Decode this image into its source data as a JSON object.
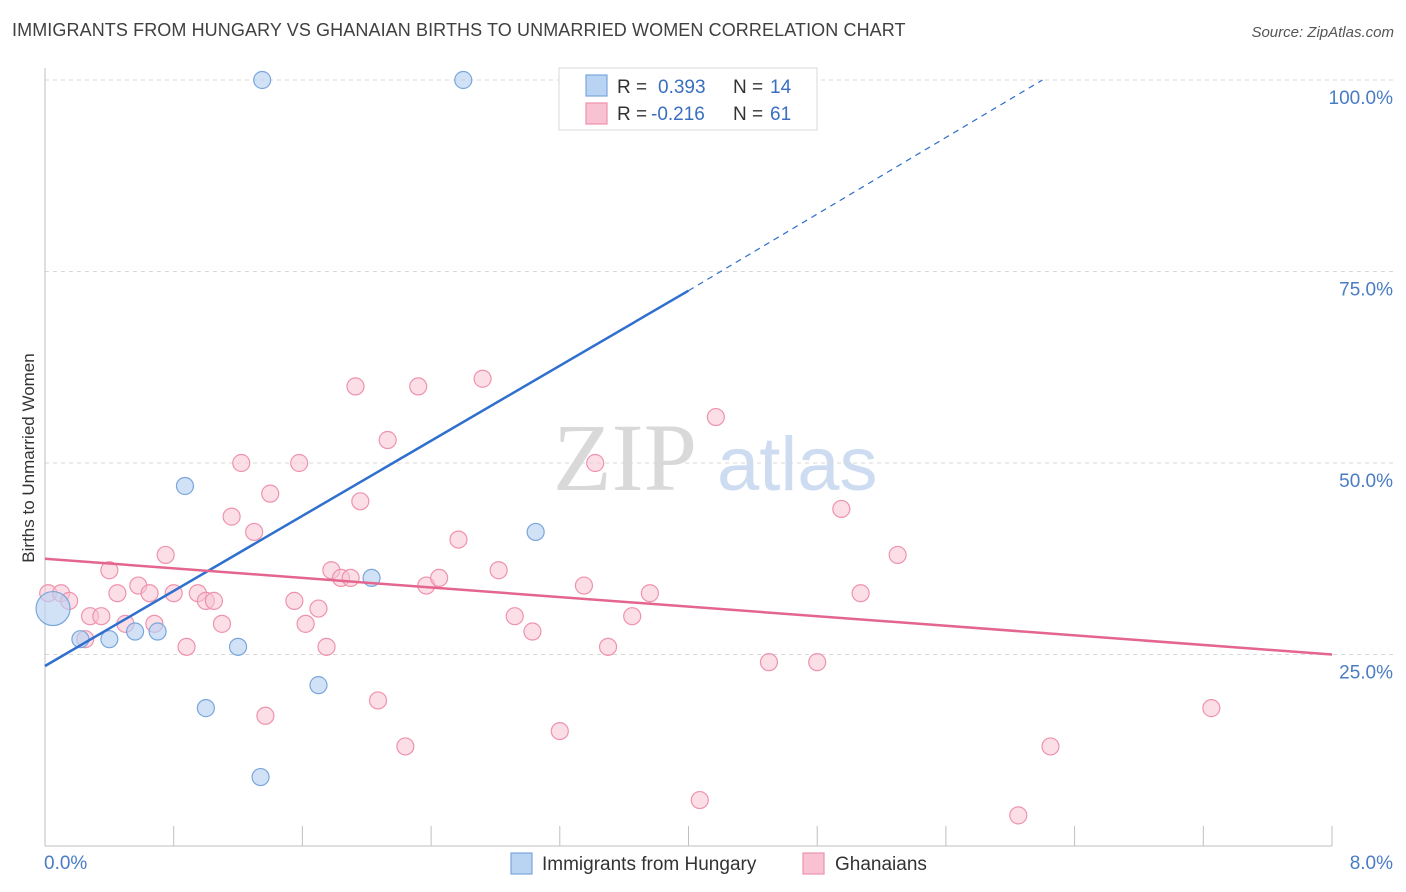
{
  "title": "IMMIGRANTS FROM HUNGARY VS GHANAIAN BIRTHS TO UNMARRIED WOMEN CORRELATION CHART",
  "source": "Source: ZipAtlas.com",
  "watermark": {
    "zip": "ZIP",
    "atlas": "atlas"
  },
  "colors": {
    "blue_fill": "#b9d3f3",
    "blue_stroke": "#7aa6dc",
    "blue_line": "#2f6fce",
    "pink_fill": "#f8c2d2",
    "pink_stroke": "#ee93ae",
    "pink_line": "#e4658e",
    "grid": "#d8d8d8",
    "tick_text": "#4a7cc4"
  },
  "legend_top": {
    "rows": [
      {
        "r_label": "R =",
        "r_value": "0.393",
        "n_label": "N =",
        "n_value": "14"
      },
      {
        "r_label": "R =",
        "r_value": "-0.216",
        "n_label": "N =",
        "n_value": "61"
      }
    ]
  },
  "legend_bottom": [
    "Immigrants from Hungary",
    "Ghanaians"
  ],
  "chart_data": {
    "type": "scatter",
    "title": "IMMIGRANTS FROM HUNGARY VS GHANAIAN BIRTHS TO UNMARRIED WOMEN CORRELATION CHART",
    "xlabel": "",
    "ylabel": "Births to Unmarried Women",
    "xlim": [
      0,
      8
    ],
    "ylim": [
      0,
      100
    ],
    "x_tick_labels": [
      "0.0%",
      "8.0%"
    ],
    "y_tick_labels": [
      "25.0%",
      "50.0%",
      "75.0%",
      "100.0%"
    ],
    "y_ticks": [
      25,
      50,
      75,
      100
    ],
    "series": [
      {
        "name": "Immigrants from Hungary",
        "R": 0.393,
        "N": 14,
        "points": [
          {
            "x": 0.05,
            "y": 31,
            "big": true
          },
          {
            "x": 0.22,
            "y": 27
          },
          {
            "x": 0.4,
            "y": 27
          },
          {
            "x": 0.56,
            "y": 28
          },
          {
            "x": 0.7,
            "y": 28
          },
          {
            "x": 0.87,
            "y": 47
          },
          {
            "x": 1.0,
            "y": 18
          },
          {
            "x": 1.2,
            "y": 26
          },
          {
            "x": 1.34,
            "y": 9
          },
          {
            "x": 1.7,
            "y": 21
          },
          {
            "x": 2.03,
            "y": 35
          },
          {
            "x": 3.05,
            "y": 41
          },
          {
            "x": 1.35,
            "y": 100
          },
          {
            "x": 2.6,
            "y": 100
          }
        ],
        "trend": {
          "x0": 0.0,
          "y0": 23.5,
          "x1": 4.0,
          "y1": 72.5,
          "dash_x1": 6.2,
          "dash_y1": 100
        }
      },
      {
        "name": "Ghanaians",
        "R": -0.216,
        "N": 61,
        "points": [
          {
            "x": 0.02,
            "y": 33
          },
          {
            "x": 0.1,
            "y": 33
          },
          {
            "x": 0.15,
            "y": 32
          },
          {
            "x": 0.25,
            "y": 27
          },
          {
            "x": 0.28,
            "y": 30
          },
          {
            "x": 0.35,
            "y": 30
          },
          {
            "x": 0.4,
            "y": 36
          },
          {
            "x": 0.45,
            "y": 33
          },
          {
            "x": 0.5,
            "y": 29
          },
          {
            "x": 0.58,
            "y": 34
          },
          {
            "x": 0.65,
            "y": 33
          },
          {
            "x": 0.68,
            "y": 29
          },
          {
            "x": 0.75,
            "y": 38
          },
          {
            "x": 0.8,
            "y": 33
          },
          {
            "x": 0.88,
            "y": 26
          },
          {
            "x": 0.95,
            "y": 33
          },
          {
            "x": 1.0,
            "y": 32
          },
          {
            "x": 1.05,
            "y": 32
          },
          {
            "x": 1.1,
            "y": 29
          },
          {
            "x": 1.16,
            "y": 43
          },
          {
            "x": 1.22,
            "y": 50
          },
          {
            "x": 1.3,
            "y": 41
          },
          {
            "x": 1.4,
            "y": 46
          },
          {
            "x": 1.37,
            "y": 17
          },
          {
            "x": 1.55,
            "y": 32
          },
          {
            "x": 1.58,
            "y": 50
          },
          {
            "x": 1.62,
            "y": 29
          },
          {
            "x": 1.7,
            "y": 31
          },
          {
            "x": 1.75,
            "y": 26
          },
          {
            "x": 1.78,
            "y": 36
          },
          {
            "x": 1.84,
            "y": 35
          },
          {
            "x": 1.9,
            "y": 35
          },
          {
            "x": 1.93,
            "y": 60
          },
          {
            "x": 1.96,
            "y": 45
          },
          {
            "x": 2.07,
            "y": 19
          },
          {
            "x": 2.13,
            "y": 53
          },
          {
            "x": 2.24,
            "y": 13
          },
          {
            "x": 2.32,
            "y": 60
          },
          {
            "x": 2.37,
            "y": 34
          },
          {
            "x": 2.45,
            "y": 35
          },
          {
            "x": 2.57,
            "y": 40
          },
          {
            "x": 2.72,
            "y": 61
          },
          {
            "x": 2.82,
            "y": 36
          },
          {
            "x": 2.92,
            "y": 30
          },
          {
            "x": 3.03,
            "y": 28
          },
          {
            "x": 3.2,
            "y": 15
          },
          {
            "x": 3.35,
            "y": 34
          },
          {
            "x": 3.42,
            "y": 50
          },
          {
            "x": 3.5,
            "y": 26
          },
          {
            "x": 3.65,
            "y": 30
          },
          {
            "x": 3.76,
            "y": 33
          },
          {
            "x": 4.07,
            "y": 6
          },
          {
            "x": 4.17,
            "y": 56
          },
          {
            "x": 4.5,
            "y": 24
          },
          {
            "x": 4.8,
            "y": 24
          },
          {
            "x": 4.95,
            "y": 44
          },
          {
            "x": 5.07,
            "y": 33
          },
          {
            "x": 5.3,
            "y": 38
          },
          {
            "x": 6.05,
            "y": 4
          },
          {
            "x": 6.25,
            "y": 13
          },
          {
            "x": 7.25,
            "y": 18
          }
        ],
        "trend": {
          "x0": 0.0,
          "y0": 37.5,
          "x1": 8.0,
          "y1": 25.0
        }
      }
    ]
  }
}
